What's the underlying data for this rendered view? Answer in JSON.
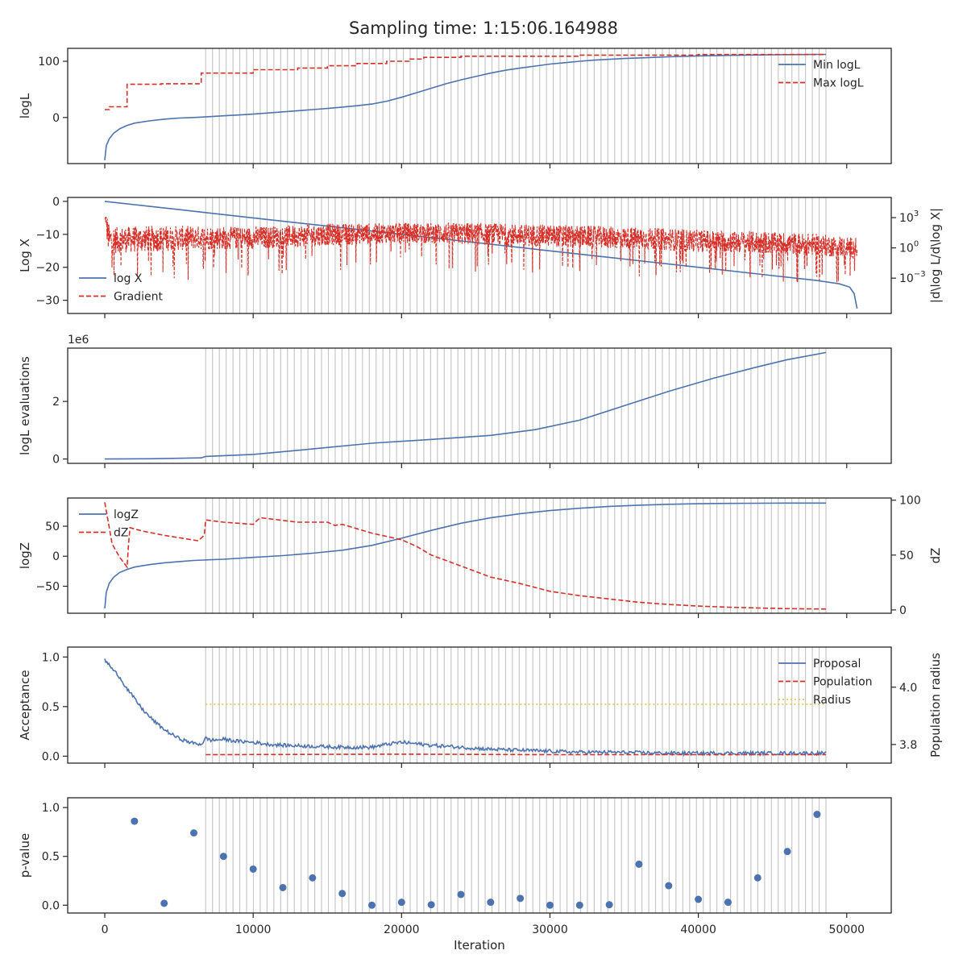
{
  "title": "Sampling time: 1:15:06.164988",
  "colors": {
    "blue": "#4c72b0",
    "red": "#d62f28",
    "yellow": "#e6c44a",
    "vline": "#c8c8c8",
    "axis": "#262626"
  },
  "chart_data": [
    {
      "type": "line",
      "ylabel": "logL",
      "xlim": [
        -2500,
        53000
      ],
      "ylim": [
        -82,
        123
      ],
      "yticks": [
        {
          "v": 0,
          "label": "0"
        },
        {
          "v": 100,
          "label": "100"
        }
      ],
      "legend": {
        "position": "top-right",
        "entries": [
          "Min logL",
          "Max logL"
        ]
      },
      "series": [
        {
          "name": "Min logL",
          "style": "solid",
          "color": "blue",
          "x": [
            0,
            100,
            300,
            600,
            1000,
            1500,
            2000,
            3000,
            4000,
            5000,
            6000,
            7000,
            8000,
            9000,
            10000,
            11000,
            12000,
            13000,
            14000,
            15000,
            16000,
            17000,
            18000,
            19000,
            20000,
            21000,
            22000,
            23000,
            24000,
            25000,
            26000,
            27000,
            28000,
            29000,
            30000,
            31000,
            32000,
            33000,
            34000,
            35000,
            36000,
            37000,
            38000,
            39000,
            40000,
            41000,
            42000,
            43000,
            44000,
            45000,
            46000,
            47000,
            48000,
            48600
          ],
          "y": [
            -76,
            -50,
            -38,
            -28,
            -20,
            -14,
            -10,
            -6,
            -3,
            -1,
            0,
            1.5,
            3,
            4.5,
            6,
            8,
            10,
            12,
            14,
            16,
            18.5,
            21,
            24,
            29,
            36,
            44,
            52,
            60,
            67,
            73,
            79,
            84,
            88,
            91.5,
            95,
            97.5,
            100,
            102,
            103.5,
            105,
            106,
            107,
            108,
            108.8,
            109.5,
            110,
            110.5,
            111,
            111.3,
            111.6,
            111.8,
            112,
            112.2,
            112.3
          ]
        },
        {
          "name": "Max logL",
          "style": "dashed",
          "color": "red",
          "x": [
            0,
            300,
            300,
            1500,
            1500,
            3800,
            3800,
            6500,
            6500,
            10000,
            10000,
            13000,
            13000,
            15000,
            15000,
            17000,
            17000,
            19000,
            19000,
            20500,
            20500,
            21500,
            21500,
            24000,
            24000,
            32000,
            32000,
            40000,
            40000,
            48600
          ],
          "y": [
            14,
            14,
            19,
            19,
            59,
            59,
            60,
            60,
            79,
            79,
            85,
            85,
            88,
            88,
            92,
            92,
            96,
            96,
            100,
            100,
            104,
            104,
            107,
            107,
            109,
            109,
            111,
            111,
            112,
            112
          ]
        }
      ]
    },
    {
      "type": "line",
      "ylabel": "Log X",
      "ylabel_right": "|d\\log L/d\\log X|",
      "xlim": [
        -2500,
        53000
      ],
      "ylim": [
        -34,
        1.2
      ],
      "yticks": [
        {
          "v": 0,
          "label": "0"
        },
        {
          "v": -10,
          "label": "−10"
        },
        {
          "v": -20,
          "label": "−20"
        },
        {
          "v": -30,
          "label": "−30"
        }
      ],
      "y2ticks": [
        {
          "exp": 3,
          "base": "10",
          "sup": "3"
        },
        {
          "exp": 0,
          "base": "10",
          "sup": "0"
        },
        {
          "exp": -3,
          "base": "10",
          "sup": "−3"
        }
      ],
      "y2lim_log10": [
        -6.5,
        5.0
      ],
      "legend": {
        "position": "lower-left",
        "entries": [
          "log X",
          "Gradient"
        ]
      },
      "series": [
        {
          "name": "log X",
          "style": "solid",
          "color": "blue",
          "x": [
            0,
            5000,
            10000,
            15000,
            20000,
            25000,
            30000,
            35000,
            40000,
            45000,
            48000,
            49500,
            50200,
            50500,
            50700
          ],
          "y": [
            0,
            -2.5,
            -5,
            -7.5,
            -10,
            -12.5,
            -15,
            -17.5,
            -20,
            -22.5,
            -24,
            -25,
            -26,
            -28,
            -32.5
          ]
        },
        {
          "name": "Gradient",
          "style": "dashed",
          "color": "red",
          "scale": "log10",
          "description_points": {
            "x": [
              0,
              300,
              1000,
              3000,
              6000,
              10000,
              15000,
              20000,
              25000,
              30000,
              35000,
              40000,
              45000,
              48000,
              50700
            ],
            "center_log10": [
              2.5,
              0.8,
              0.8,
              0.9,
              1.0,
              1.0,
              1.3,
              1.5,
              1.4,
              1.2,
              1.0,
              0.7,
              0.5,
              0.3,
              0.0
            ],
            "spread_log10": [
              2.0,
              1.4,
              1.3,
              1.3,
              1.2,
              1.1,
              1.1,
              1.0,
              1.1,
              1.1,
              1.1,
              1.1,
              1.1,
              1.1,
              1.0
            ]
          }
        }
      ]
    },
    {
      "type": "line",
      "ylabel": "logL evaluations",
      "offset_label": "1e6",
      "xlim": [
        -2500,
        53000
      ],
      "ylim": [
        -0.15,
        3.85
      ],
      "yticks": [
        {
          "v": 0,
          "label": "0"
        },
        {
          "v": 2,
          "label": "2"
        }
      ],
      "series": [
        {
          "name": "",
          "style": "solid",
          "color": "blue",
          "x": [
            0,
            3000,
            6500,
            6800,
            10000,
            14000,
            18000,
            22000,
            26000,
            29000,
            32000,
            35000,
            38000,
            41000,
            44000,
            46000,
            48600
          ],
          "y": [
            0.0,
            0.01,
            0.04,
            0.09,
            0.16,
            0.35,
            0.55,
            0.68,
            0.82,
            1.02,
            1.35,
            1.85,
            2.35,
            2.8,
            3.2,
            3.45,
            3.7
          ]
        }
      ]
    },
    {
      "type": "line",
      "ylabel": "logZ",
      "ylabel_right": "dZ",
      "xlim": [
        -2500,
        53000
      ],
      "ylim": [
        -95,
        97
      ],
      "y2lim": [
        -3,
        102
      ],
      "yticks": [
        {
          "v": 50,
          "label": "50"
        },
        {
          "v": 0,
          "label": "0"
        },
        {
          "v": -50,
          "label": "−50"
        }
      ],
      "y2ticks": [
        {
          "v": 100,
          "label": "100"
        },
        {
          "v": 50,
          "label": "50"
        },
        {
          "v": 0,
          "label": "0"
        }
      ],
      "legend": {
        "position": "top-left",
        "entries": [
          "logZ",
          "dZ"
        ]
      },
      "series": [
        {
          "name": "logZ",
          "style": "solid",
          "color": "blue",
          "x": [
            0,
            100,
            300,
            600,
            1000,
            1500,
            2000,
            3000,
            4000,
            5000,
            6000,
            7000,
            8000,
            10000,
            12000,
            14000,
            16000,
            18000,
            20000,
            22000,
            24000,
            26000,
            28000,
            30000,
            32000,
            34000,
            36000,
            38000,
            40000,
            42000,
            44000,
            46000,
            48600
          ],
          "y": [
            -87,
            -60,
            -45,
            -35,
            -27,
            -22,
            -18,
            -14,
            -11,
            -9,
            -7,
            -6,
            -5,
            -2,
            1,
            5,
            10,
            18,
            30,
            43,
            55,
            64,
            71,
            76,
            80,
            83,
            85,
            86.5,
            87.5,
            88,
            88.3,
            88.5,
            88.6
          ]
        },
        {
          "name": "dZ",
          "style": "dashed",
          "color": "red",
          "axis": "right",
          "x": [
            0,
            500,
            1000,
            1500,
            1600,
            1700,
            2500,
            4000,
            6300,
            6700,
            6800,
            8000,
            10000,
            10300,
            10500,
            13000,
            15000,
            15500,
            16000,
            18000,
            20000,
            21000,
            22000,
            24000,
            26000,
            28000,
            30000,
            32000,
            34000,
            36000,
            38000,
            40000,
            42000,
            44000,
            46000,
            48600
          ],
          "y": [
            98,
            60,
            48,
            39,
            60,
            75,
            72,
            68,
            63,
            68,
            82,
            80,
            78,
            82,
            84,
            80,
            80,
            77,
            78,
            70,
            64,
            58,
            50,
            40,
            30,
            24,
            17,
            13,
            10,
            7,
            5,
            3.5,
            2.5,
            1.8,
            1.2,
            0.8
          ]
        }
      ]
    },
    {
      "type": "line",
      "ylabel": "Acceptance",
      "ylabel_right": "Population radius",
      "xlim": [
        -2500,
        53000
      ],
      "ylim": [
        -0.07,
        1.1
      ],
      "y2lim": [
        3.735,
        4.14
      ],
      "yticks": [
        {
          "v": 1.0,
          "label": "1.0"
        },
        {
          "v": 0.5,
          "label": "0.5"
        },
        {
          "v": 0.0,
          "label": "0.0"
        }
      ],
      "y2ticks": [
        {
          "v": 4.0,
          "label": "4.0"
        },
        {
          "v": 3.8,
          "label": "3.8"
        }
      ],
      "legend": {
        "position": "top-right",
        "entries": [
          "Proposal",
          "Population",
          "Radius"
        ]
      },
      "series": [
        {
          "name": "Proposal",
          "style": "solid",
          "color": "blue",
          "x": [
            0,
            300,
            600,
            900,
            1200,
            1500,
            2000,
            2500,
            3000,
            3500,
            4000,
            4500,
            5000,
            5500,
            6000,
            6500,
            6800,
            7200,
            8000,
            9000,
            10000,
            11000,
            12000,
            14000,
            16000,
            18000,
            19000,
            20000,
            22000,
            24000,
            26000,
            28000,
            30000,
            32000,
            34000,
            36000,
            38000,
            40000,
            42000,
            44000,
            46000,
            48600
          ],
          "y": [
            0.97,
            0.92,
            0.86,
            0.82,
            0.75,
            0.68,
            0.58,
            0.48,
            0.4,
            0.33,
            0.27,
            0.22,
            0.18,
            0.15,
            0.13,
            0.12,
            0.18,
            0.16,
            0.17,
            0.15,
            0.14,
            0.12,
            0.11,
            0.1,
            0.09,
            0.09,
            0.12,
            0.14,
            0.11,
            0.09,
            0.07,
            0.06,
            0.05,
            0.04,
            0.04,
            0.035,
            0.03,
            0.03,
            0.03,
            0.03,
            0.03,
            0.03
          ]
        },
        {
          "name": "Population",
          "style": "dashed",
          "color": "red",
          "x": [
            6800,
            20000,
            30000,
            48600
          ],
          "y": [
            0.015,
            0.02,
            0.015,
            0.015
          ]
        },
        {
          "name": "Radius",
          "style": "dotted",
          "color": "yellow",
          "axis": "right",
          "x": [
            6800,
            48600
          ],
          "y": [
            3.94,
            3.94
          ]
        }
      ]
    },
    {
      "type": "scatter",
      "ylabel": "p-value",
      "xlabel": "Iteration",
      "xlim": [
        -2500,
        53000
      ],
      "ylim": [
        -0.08,
        1.1
      ],
      "yticks": [
        {
          "v": 1.0,
          "label": "1.0"
        },
        {
          "v": 0.5,
          "label": "0.5"
        },
        {
          "v": 0.0,
          "label": "0.0"
        }
      ],
      "xticks": [
        {
          "v": 0,
          "label": "0"
        },
        {
          "v": 10000,
          "label": "10000"
        },
        {
          "v": 20000,
          "label": "20000"
        },
        {
          "v": 30000,
          "label": "30000"
        },
        {
          "v": 40000,
          "label": "40000"
        },
        {
          "v": 50000,
          "label": "50000"
        }
      ],
      "series": [
        {
          "name": "",
          "color": "blue",
          "x": [
            2000,
            4000,
            6000,
            8000,
            10000,
            12000,
            14000,
            16000,
            18000,
            20000,
            22000,
            24000,
            26000,
            28000,
            30000,
            32000,
            34000,
            36000,
            38000,
            40000,
            42000,
            44000,
            46000,
            48000
          ],
          "y": [
            0.86,
            0.02,
            0.74,
            0.5,
            0.37,
            0.18,
            0.28,
            0.12,
            0.0,
            0.03,
            0.005,
            0.11,
            0.03,
            0.07,
            0.0,
            0.0,
            0.005,
            0.42,
            0.2,
            0.06,
            0.03,
            0.28,
            0.55,
            0.93
          ]
        }
      ]
    }
  ],
  "vertical_lines": {
    "start": 6800,
    "end": 48600,
    "count": 92
  }
}
